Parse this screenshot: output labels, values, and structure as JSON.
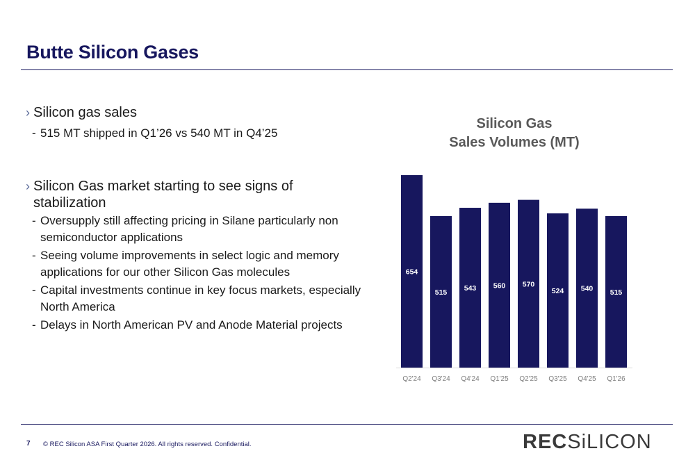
{
  "header": {
    "title": "Butte Silicon Gases"
  },
  "bullets": [
    {
      "text": "Silicon gas sales",
      "subs": [
        "515 MT shipped in Q1’26 vs 540 MT in Q4’25"
      ]
    },
    {
      "text": "Silicon Gas market starting to see signs of stabilization",
      "subs": [
        "Oversupply still affecting pricing in Silane particularly non semiconductor applications",
        "Seeing volume improvements in select logic and memory applications for our other Silicon Gas molecules",
        "Capital investments continue in key focus markets, especially North America",
        "Delays in North American PV and Anode Material projects"
      ]
    }
  ],
  "chart_data": {
    "type": "bar",
    "title_lines": [
      "Silicon Gas",
      "Sales Volumes (MT)"
    ],
    "categories": [
      "Q2'24",
      "Q3'24",
      "Q4'24",
      "Q1'25",
      "Q2'25",
      "Q3'25",
      "Q4'25",
      "Q1'26"
    ],
    "values": [
      654,
      515,
      543,
      560,
      570,
      524,
      540,
      515
    ],
    "data_labels": true,
    "bar_color": "#17175e",
    "label_color": "#ffffff",
    "axis_label_color": "#7f7f7f",
    "grid": false
  },
  "footer": {
    "page_number": "7",
    "text": "©  REC Silicon ASA First Quarter 2026. All rights reserved. Confidential.",
    "logo_part1": "REC",
    "logo_part2": "SiLICON"
  },
  "colors": {
    "brand_navy": "#17175e",
    "text": "#1a1a1a"
  }
}
